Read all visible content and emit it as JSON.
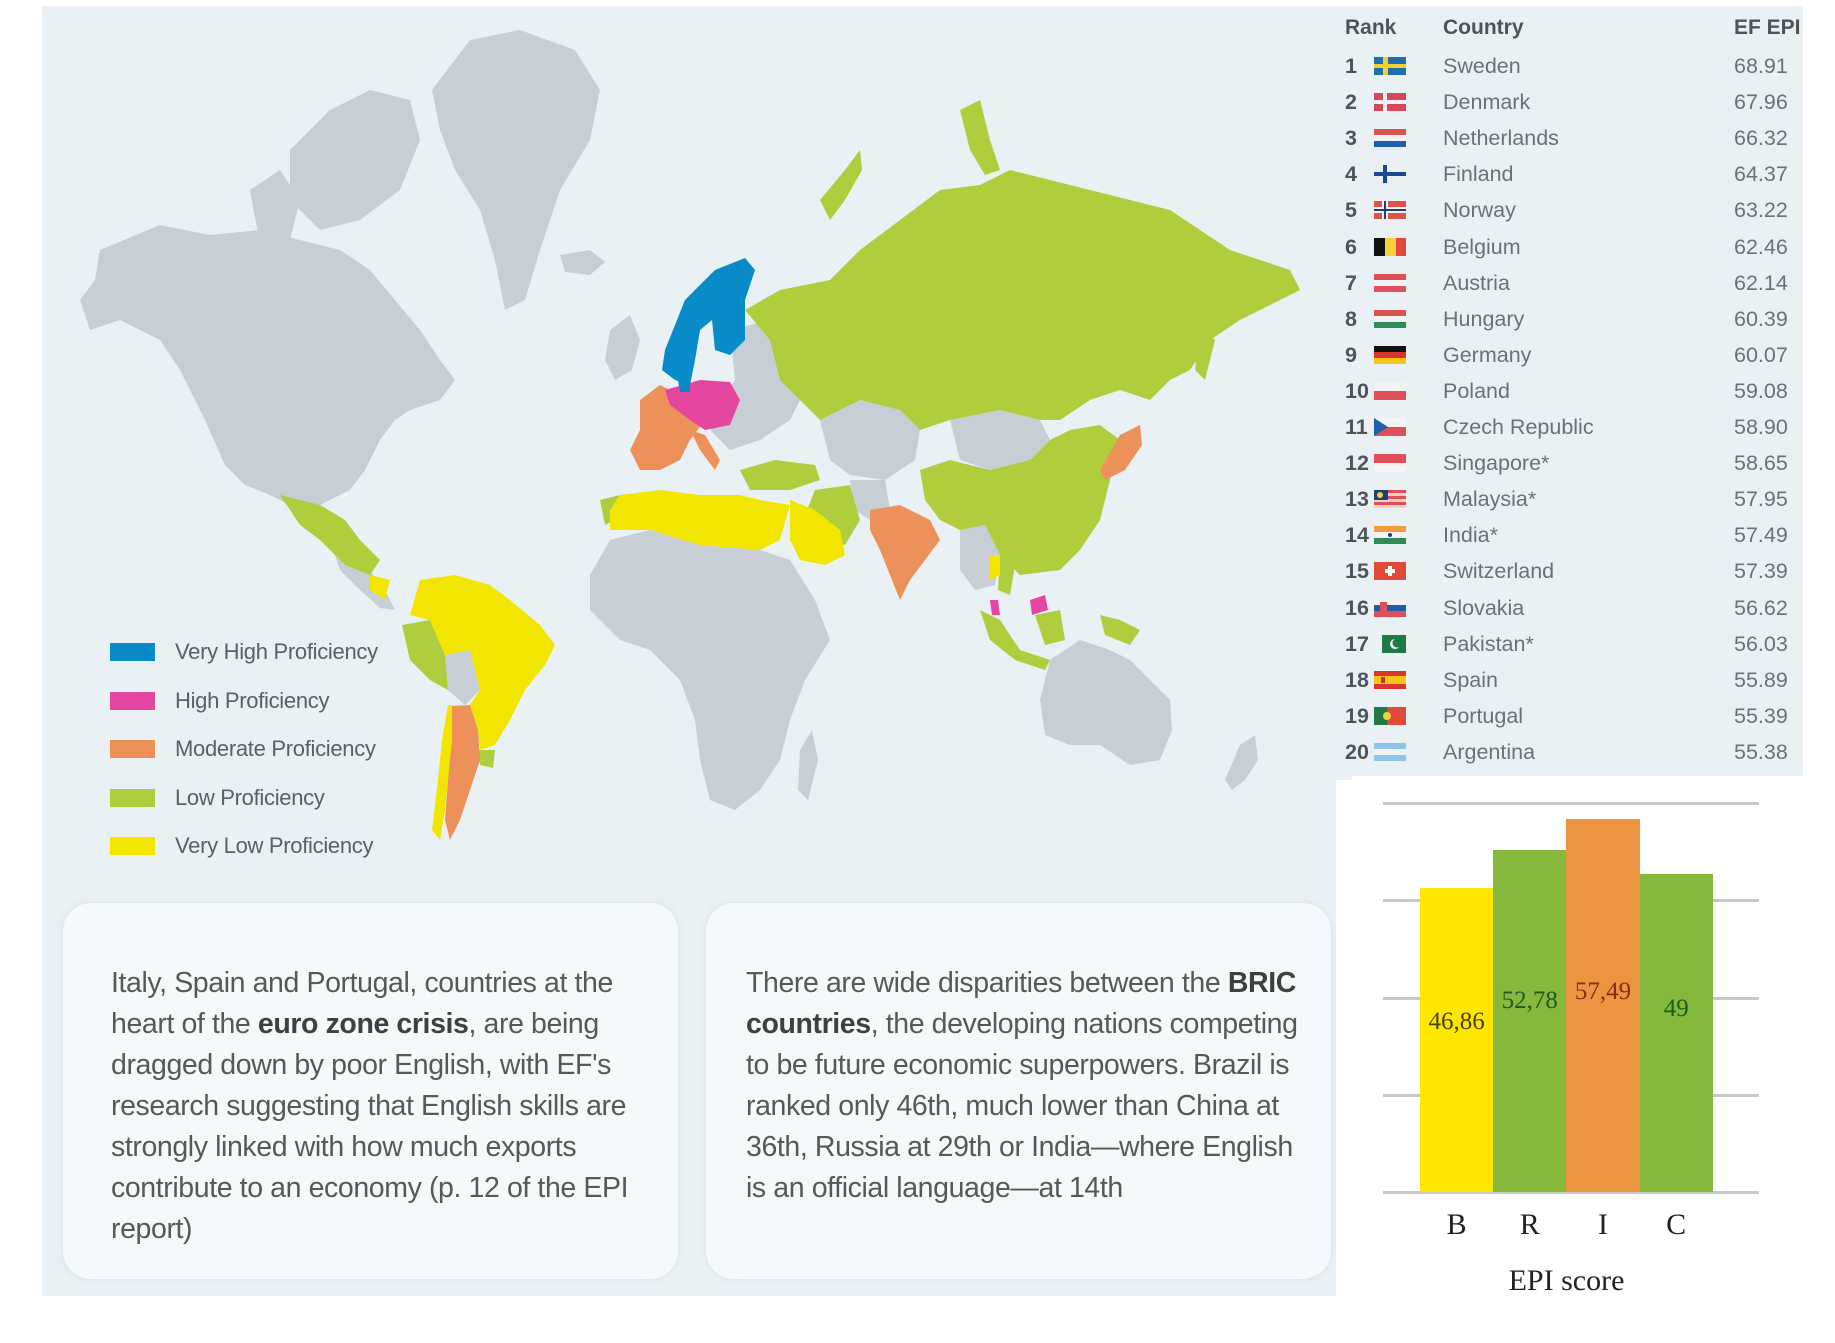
{
  "map": {
    "legend": [
      {
        "label": "Very High Proficiency",
        "color": "#0a8bc9"
      },
      {
        "label": "High Proficiency",
        "color": "#e5469f"
      },
      {
        "label": "Moderate Proficiency",
        "color": "#ec9159"
      },
      {
        "label": "Low Proficiency",
        "color": "#afcd3c"
      },
      {
        "label": "Very Low Proficiency",
        "color": "#f2e600"
      }
    ],
    "no_data_color": "#c8ced6",
    "ocean_color": "#e9f1f5"
  },
  "cards": [
    {
      "parts": [
        {
          "text": "Italy, Spain and Portugal, countries at the heart of the ",
          "bold": false
        },
        {
          "text": "euro zone crisis",
          "bold": true
        },
        {
          "text": ", are being dragged down by poor English, with EF's research suggesting that English skills are strongly linked with how much exports contribute to an economy (p. 12 of the EPI report)",
          "bold": false
        }
      ]
    },
    {
      "parts": [
        {
          "text": "There are wide disparities between the ",
          "bold": false
        },
        {
          "text": "BRIC countries",
          "bold": true
        },
        {
          "text": ", the developing nations competing to be future economic superpowers. Brazil is ranked only 46th, much lower than China at 36th, Russia at 29th or India—where English is an official language—at 14th",
          "bold": false
        }
      ]
    }
  ],
  "ranking_table": {
    "headers": {
      "rank": "Rank",
      "country": "Country",
      "score": "EF EPI"
    },
    "rows": [
      {
        "rank": "1",
        "country": "Sweden",
        "score": "68.91",
        "flag": "sweden"
      },
      {
        "rank": "2",
        "country": "Denmark",
        "score": "67.96",
        "flag": "denmark"
      },
      {
        "rank": "3",
        "country": "Netherlands",
        "score": "66.32",
        "flag": "netherlands"
      },
      {
        "rank": "4",
        "country": "Finland",
        "score": "64.37",
        "flag": "finland"
      },
      {
        "rank": "5",
        "country": "Norway",
        "score": "63.22",
        "flag": "norway"
      },
      {
        "rank": "6",
        "country": "Belgium",
        "score": "62.46",
        "flag": "belgium"
      },
      {
        "rank": "7",
        "country": "Austria",
        "score": "62.14",
        "flag": "austria"
      },
      {
        "rank": "8",
        "country": "Hungary",
        "score": "60.39",
        "flag": "hungary"
      },
      {
        "rank": "9",
        "country": "Germany",
        "score": "60.07",
        "flag": "germany"
      },
      {
        "rank": "10",
        "country": "Poland",
        "score": "59.08",
        "flag": "poland"
      },
      {
        "rank": "11",
        "country": "Czech Republic",
        "score": "58.90",
        "flag": "czech"
      },
      {
        "rank": "12",
        "country": "Singapore*",
        "score": "58.65",
        "flag": "singapore"
      },
      {
        "rank": "13",
        "country": "Malaysia*",
        "score": "57.95",
        "flag": "malaysia"
      },
      {
        "rank": "14",
        "country": "India*",
        "score": "57.49",
        "flag": "india"
      },
      {
        "rank": "15",
        "country": "Switzerland",
        "score": "57.39",
        "flag": "switzerland"
      },
      {
        "rank": "16",
        "country": "Slovakia",
        "score": "56.62",
        "flag": "slovakia"
      },
      {
        "rank": "17",
        "country": "Pakistan*",
        "score": "56.03",
        "flag": "pakistan"
      },
      {
        "rank": "18",
        "country": "Spain",
        "score": "55.89",
        "flag": "spain"
      },
      {
        "rank": "19",
        "country": "Portugal",
        "score": "55.39",
        "flag": "portugal"
      },
      {
        "rank": "20",
        "country": "Argentina",
        "score": "55.38",
        "flag": "argentina"
      }
    ]
  },
  "chart_data": {
    "type": "bar",
    "title": "",
    "categories": [
      "B",
      "R",
      "I",
      "C"
    ],
    "values": [
      46.86,
      52.78,
      57.49,
      49
    ],
    "value_labels": [
      "46,86",
      "52,78",
      "57,49",
      "49"
    ],
    "bar_colors": [
      "#ffe600",
      "#86b83c",
      "#ec9540",
      "#86b83c"
    ],
    "label_colors": [
      "#4a4300",
      "#1e5a1e",
      "#8a2a10",
      "#1e5a1e"
    ],
    "xlabel": "EPI score",
    "ylabel": "",
    "ylim": [
      0,
      60
    ],
    "gridlines": [
      0,
      15,
      30,
      45,
      60
    ],
    "grid": true,
    "legend": null
  }
}
